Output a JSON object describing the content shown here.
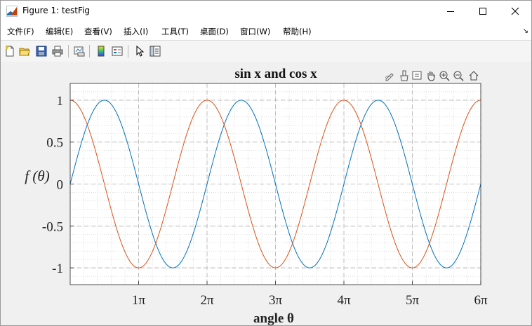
{
  "window": {
    "title": "Figure 1: testFig"
  },
  "menu": [
    "文件(F)",
    "编辑(E)",
    "查看(V)",
    "插入(I)",
    "工具(T)",
    "桌面(D)",
    "窗口(W)",
    "帮助(H)"
  ],
  "toolbar": {
    "buttons": [
      "new-figure-icon",
      "open-file-icon",
      "save-icon",
      "print-icon",
      "link-plot-icon",
      "colorbar-icon",
      "legend-icon",
      "pointer-icon",
      "property-inspector-icon"
    ]
  },
  "axes_toolbar": {
    "buttons": [
      "edit-plot-icon",
      "brush-icon",
      "data-tips-icon",
      "pan-icon",
      "zoom-in-icon",
      "zoom-out-icon",
      "restore-view-icon"
    ]
  },
  "colors": {
    "sin": "#0072bd",
    "cos": "#d95319",
    "axes_bg": "#ffffff",
    "grid": "#c8c8c8"
  },
  "chart_data": {
    "type": "line",
    "title": "sin x and cos x",
    "xlabel": "angle θ",
    "ylabel": "f (θ)",
    "xlim": [
      0,
      18.8496
    ],
    "ylim": [
      -1.2,
      1.2
    ],
    "grid": true,
    "minor_grid": true,
    "xticks": [
      3.1416,
      6.2832,
      9.4248,
      12.5664,
      15.708,
      18.8496
    ],
    "xtick_labels": [
      "1π",
      "2π",
      "3π",
      "4π",
      "5π",
      "6π"
    ],
    "yticks": [
      -1,
      -0.5,
      0,
      0.5,
      1
    ],
    "ytick_labels": [
      "-1",
      "-0.5",
      "0",
      "0.5",
      "1"
    ],
    "series": [
      {
        "function": "sin",
        "color": "#0072bd",
        "x_range": [
          0,
          18.8496
        ]
      },
      {
        "function": "cos",
        "color": "#d95319",
        "x_range": [
          0,
          18.8496
        ]
      }
    ]
  }
}
